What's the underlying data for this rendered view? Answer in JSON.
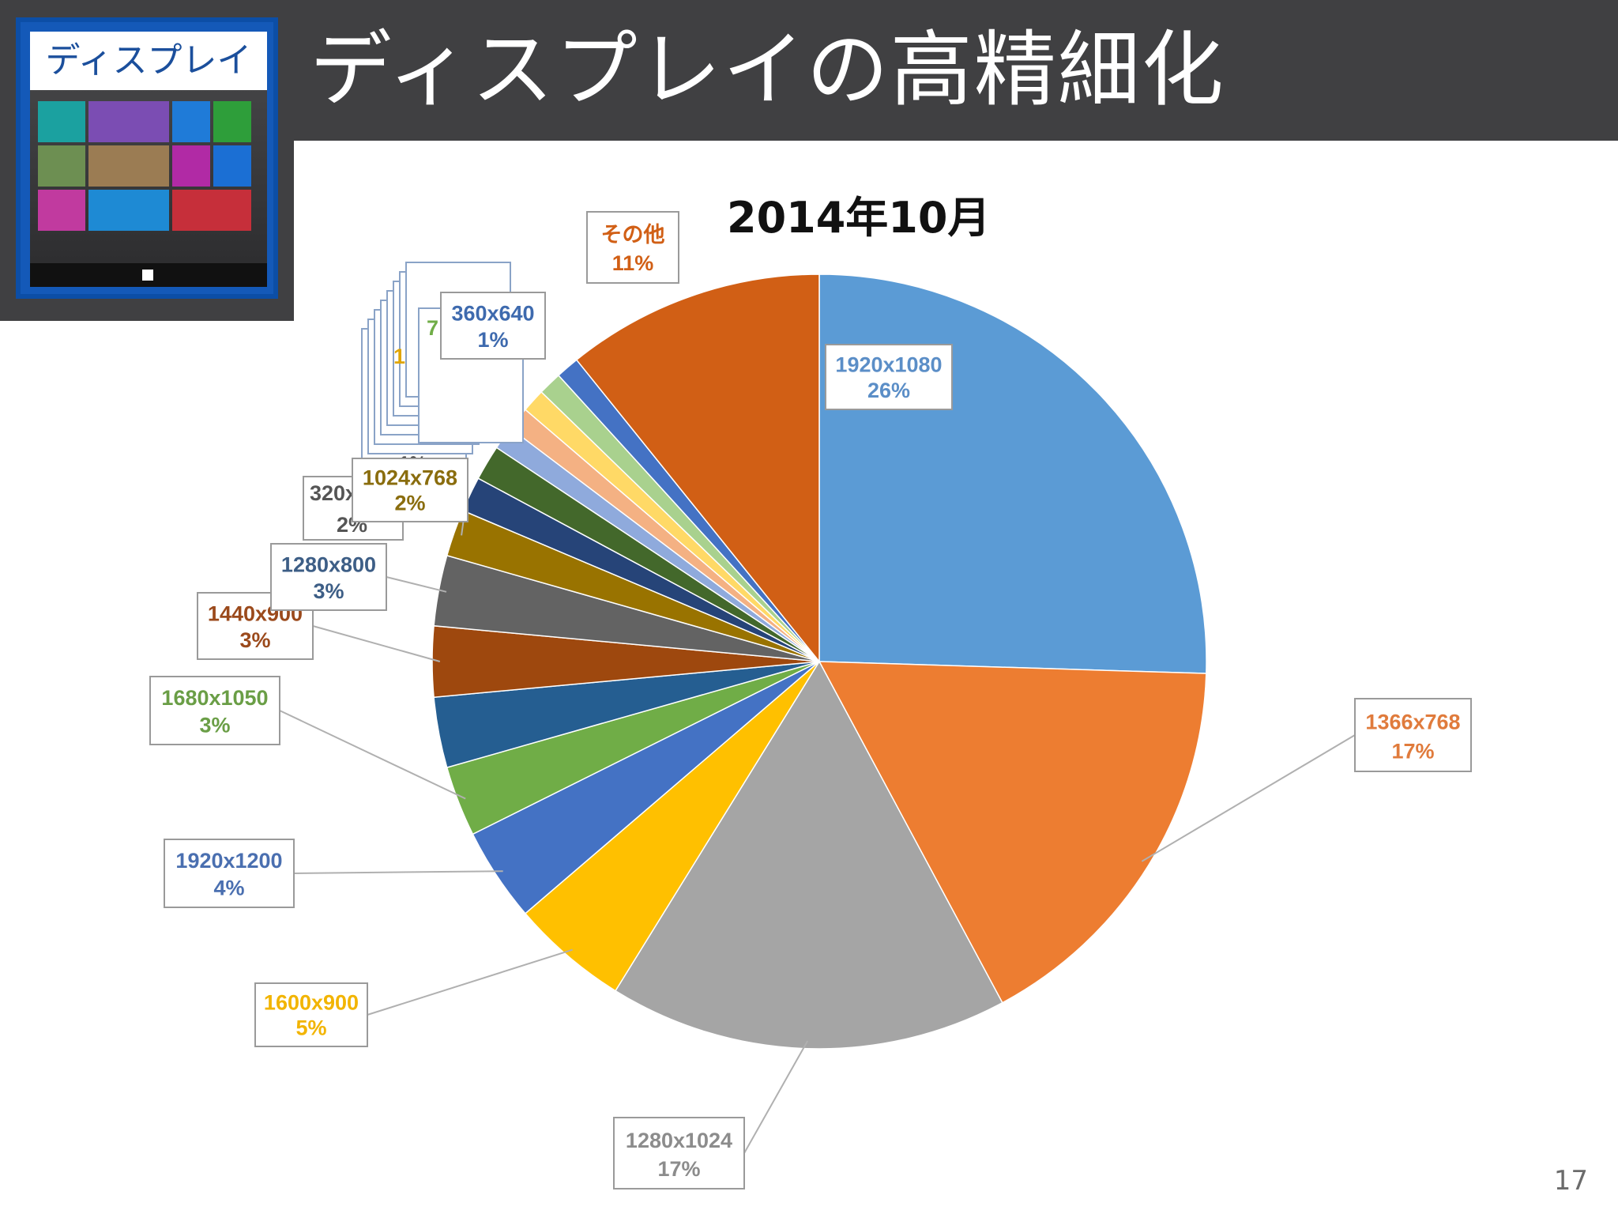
{
  "slide": {
    "title": "ディスプレイの高精細化",
    "thumbnail_label": "ディスプレイ",
    "page_number": "17"
  },
  "chart_data": {
    "type": "pie",
    "title": "2014年10月",
    "slices": [
      {
        "label": "1920x1080",
        "value": 26,
        "pct": "26%",
        "color": "#5b9bd5"
      },
      {
        "label": "1366x768",
        "value": 17,
        "pct": "17%",
        "color": "#ed7d31"
      },
      {
        "label": "1280x1024",
        "value": 17,
        "pct": "17%",
        "color": "#a5a5a5"
      },
      {
        "label": "1600x900",
        "value": 5,
        "pct": "5%",
        "color": "#ffc000"
      },
      {
        "label": "1920x1200",
        "value": 4,
        "pct": "4%",
        "color": "#4472c4"
      },
      {
        "label": "1680x1050",
        "value": 3,
        "pct": "3%",
        "color": "#70ad47"
      },
      {
        "label": "",
        "value": 3,
        "pct": "",
        "color": "#255e91"
      },
      {
        "label": "1440x900",
        "value": 3,
        "pct": "3%",
        "color": "#9e480e"
      },
      {
        "label": "1280x800",
        "value": 3,
        "pct": "3%",
        "color": "#636363"
      },
      {
        "label": "1024x768",
        "value": 2,
        "pct": "2%",
        "color": "#997300"
      },
      {
        "label": "",
        "value": 1.5,
        "pct": "",
        "color": "#264478"
      },
      {
        "label": "",
        "value": 1.5,
        "pct": "",
        "color": "#43682b"
      },
      {
        "label": "",
        "value": 1,
        "pct": "",
        "color": "#8faadc"
      },
      {
        "label": "",
        "value": 1,
        "pct": "",
        "color": "#f4b183"
      },
      {
        "label": "",
        "value": 1,
        "pct": "",
        "color": "#ffd966"
      },
      {
        "label": "",
        "value": 1,
        "pct": "",
        "color": "#a9d18e"
      },
      {
        "label": "360x640",
        "value": 1,
        "pct": "1%",
        "color": "#4472c4"
      },
      {
        "label": "その他",
        "value": 11,
        "pct": "11%",
        "color": "#d15f15"
      }
    ],
    "partial_labels": [
      {
        "text": "320x",
        "pct": "2%"
      },
      {
        "text": "1",
        "pct": "1%"
      },
      {
        "text": "7",
        "pct": "1%"
      },
      {
        "text": "",
        "pct": "1%"
      }
    ],
    "legend": "none"
  }
}
